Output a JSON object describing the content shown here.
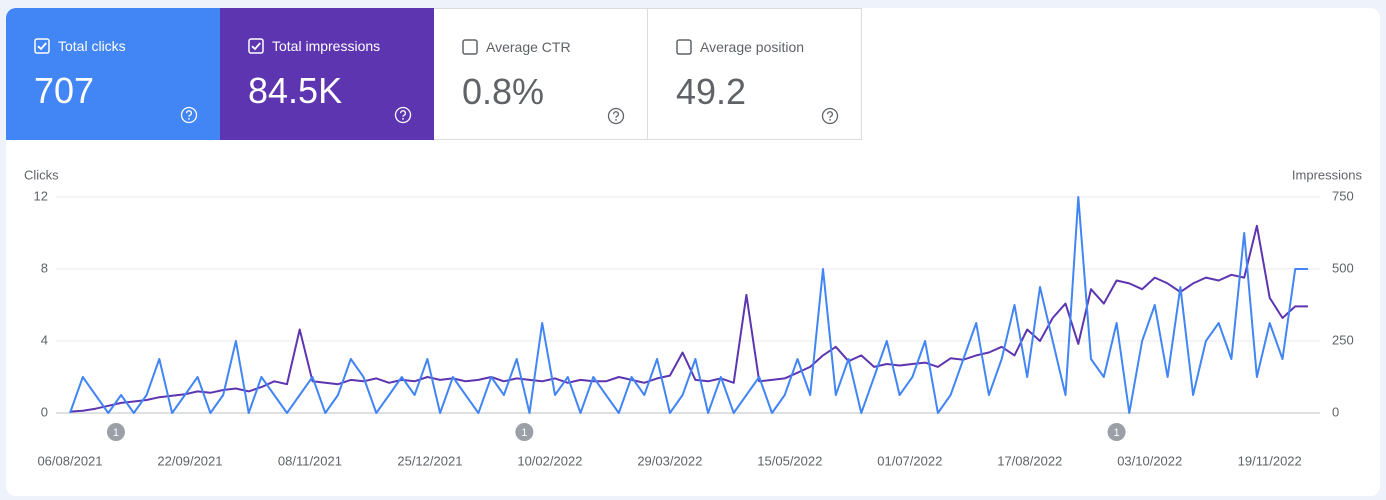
{
  "cards": [
    {
      "label": "Total clicks",
      "value": "707",
      "checked": true,
      "color": "#4285f4"
    },
    {
      "label": "Total impressions",
      "value": "84.5K",
      "checked": true,
      "color": "#5e35b1"
    },
    {
      "label": "Average CTR",
      "value": "0.8%",
      "checked": false,
      "color": "#ffffff"
    },
    {
      "label": "Average position",
      "value": "49.2",
      "checked": false,
      "color": "#ffffff"
    }
  ],
  "chart_data": {
    "type": "line",
    "ylabel": "Clicks",
    "y2label": "Impressions",
    "x": [
      "06/08/2021",
      "11/08/2021",
      "16/08/2021",
      "21/08/2021",
      "26/08/2021",
      "31/08/2021",
      "05/09/2021",
      "10/09/2021",
      "15/09/2021",
      "20/09/2021",
      "25/09/2021",
      "30/09/2021",
      "05/10/2021",
      "10/10/2021",
      "15/10/2021",
      "20/10/2021",
      "25/10/2021",
      "30/10/2021",
      "04/11/2021",
      "09/11/2021",
      "14/11/2021",
      "19/11/2021",
      "24/11/2021",
      "29/11/2021",
      "04/12/2021",
      "09/12/2021",
      "14/12/2021",
      "19/12/2021",
      "24/12/2021",
      "29/12/2021",
      "03/01/2022",
      "08/01/2022",
      "13/01/2022",
      "18/01/2022",
      "23/01/2022",
      "28/01/2022",
      "02/02/2022",
      "07/02/2022",
      "12/02/2022",
      "17/02/2022",
      "22/02/2022",
      "27/02/2022",
      "04/03/2022",
      "09/03/2022",
      "14/03/2022",
      "19/03/2022",
      "24/03/2022",
      "29/03/2022",
      "03/04/2022",
      "08/04/2022",
      "13/04/2022",
      "18/04/2022",
      "23/04/2022",
      "28/04/2022",
      "03/05/2022",
      "08/05/2022",
      "13/05/2022",
      "18/05/2022",
      "23/05/2022",
      "28/05/2022",
      "02/06/2022",
      "07/06/2022",
      "12/06/2022",
      "17/06/2022",
      "22/06/2022",
      "27/06/2022",
      "02/07/2022",
      "07/07/2022",
      "12/07/2022",
      "17/07/2022",
      "22/07/2022",
      "27/07/2022",
      "01/08/2022",
      "06/08/2022",
      "11/08/2022",
      "16/08/2022",
      "21/08/2022",
      "26/08/2022",
      "31/08/2022",
      "05/09/2022",
      "10/09/2022",
      "15/09/2022",
      "20/09/2022",
      "25/09/2022",
      "30/09/2022",
      "05/10/2022",
      "10/10/2022",
      "15/10/2022",
      "20/10/2022",
      "25/10/2022",
      "30/10/2022",
      "04/11/2022",
      "09/11/2022",
      "14/11/2022",
      "19/11/2022",
      "24/11/2022",
      "29/11/2022",
      "04/12/2022"
    ],
    "series": [
      {
        "name": "Impressions",
        "color": "#5e35b1",
        "axis": "y2",
        "values": [
          5,
          8,
          15,
          25,
          35,
          40,
          45,
          55,
          60,
          65,
          75,
          70,
          80,
          85,
          75,
          90,
          110,
          100,
          290,
          110,
          105,
          100,
          115,
          110,
          120,
          105,
          115,
          110,
          125,
          115,
          120,
          110,
          115,
          125,
          110,
          120,
          115,
          110,
          120,
          105,
          115,
          110,
          110,
          125,
          115,
          105,
          120,
          130,
          210,
          115,
          110,
          120,
          105,
          410,
          110,
          115,
          120,
          140,
          160,
          200,
          230,
          180,
          200,
          160,
          170,
          165,
          170,
          175,
          160,
          190,
          185,
          200,
          210,
          230,
          200,
          290,
          250,
          330,
          380,
          240,
          430,
          380,
          460,
          450,
          430,
          470,
          450,
          420,
          450,
          470,
          460,
          480,
          470,
          650,
          400,
          330,
          370,
          370
        ]
      },
      {
        "name": "Clicks",
        "color": "#4285f4",
        "values": [
          0,
          2,
          1,
          0,
          1,
          0,
          1,
          3,
          0,
          1,
          2,
          0,
          1,
          4,
          0,
          2,
          1,
          0,
          1,
          2,
          0,
          1,
          3,
          2,
          0,
          1,
          2,
          1,
          3,
          0,
          2,
          1,
          0,
          2,
          1,
          3,
          0,
          5,
          1,
          2,
          0,
          2,
          1,
          0,
          2,
          1,
          3,
          0,
          1,
          3,
          0,
          2,
          0,
          1,
          2,
          0,
          1,
          3,
          1,
          8,
          1,
          3,
          0,
          2,
          4,
          1,
          2,
          4,
          0,
          1,
          3,
          5,
          1,
          3,
          6,
          2,
          7,
          4,
          1,
          12,
          3,
          2,
          5,
          0,
          4,
          6,
          2,
          7,
          1,
          4,
          5,
          3,
          10,
          2,
          5,
          3,
          8,
          8
        ]
      }
    ],
    "xlim": [
      "06/08/2021",
      "04/12/2022"
    ],
    "xticks": [
      "06/08/2021",
      "22/09/2021",
      "08/11/2021",
      "25/12/2021",
      "10/02/2022",
      "29/03/2022",
      "15/05/2022",
      "01/07/2022",
      "17/08/2022",
      "03/10/2022",
      "19/11/2022"
    ],
    "ylim": [
      0,
      12
    ],
    "yticks": [
      0,
      4,
      8,
      12
    ],
    "y2lim": [
      0,
      750
    ],
    "y2ticks": [
      0,
      250,
      500,
      750
    ],
    "grid": true,
    "annotations": [
      {
        "x": "24/08/2021",
        "label": "1"
      },
      {
        "x": "31/01/2022",
        "label": "1"
      },
      {
        "x": "20/09/2022",
        "label": "1"
      }
    ]
  }
}
